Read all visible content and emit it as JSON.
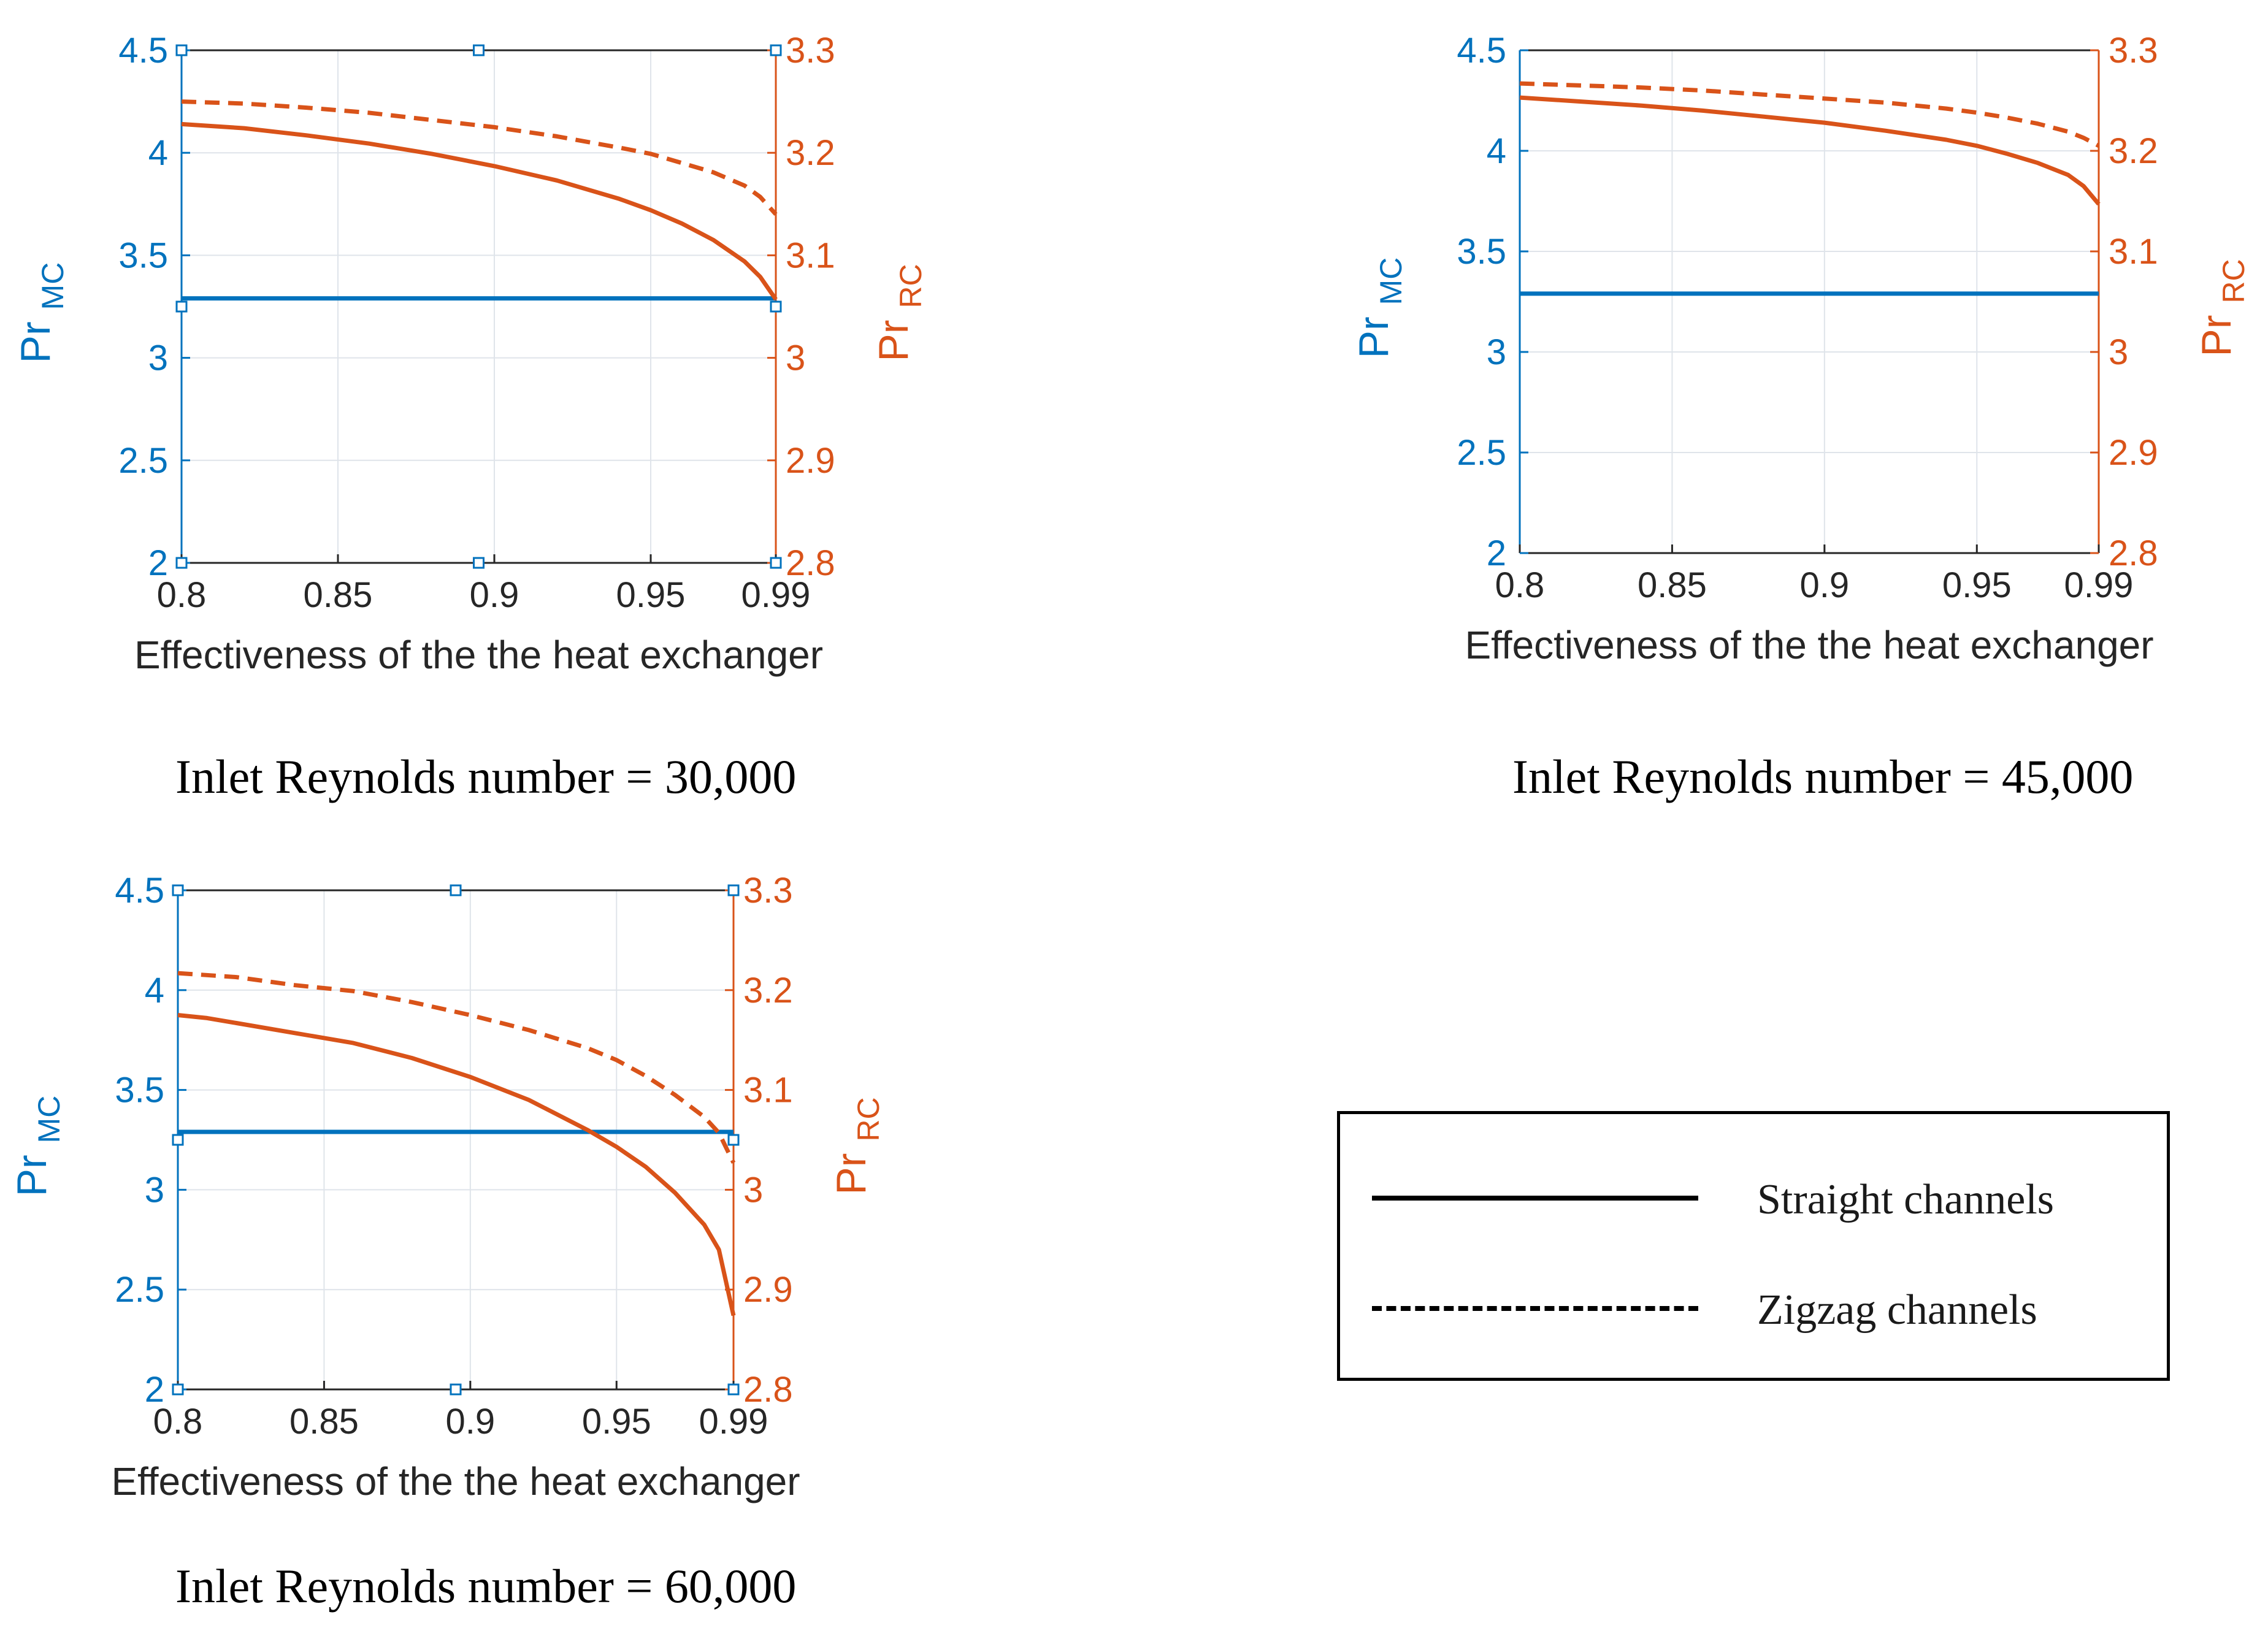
{
  "colors": {
    "left_axis": "#0072BD",
    "right_axis": "#D95319",
    "grid": "#dfe4ea",
    "tick_text": "#262626"
  },
  "legend": {
    "items": [
      {
        "label": "Straight channels",
        "style": "solid"
      },
      {
        "label": "Zigzag channels",
        "style": "dashed"
      }
    ]
  },
  "chart_data": [
    {
      "type": "line",
      "caption": "Inlet Reynolds number = 30,000",
      "xlabel": "Effectiveness of the the heat exchanger",
      "ylabel_left": {
        "main": "Pr",
        "sub": "MC"
      },
      "ylabel_right": {
        "main": "Pr",
        "sub": "RC"
      },
      "xlim": [
        0.8,
        0.99
      ],
      "ylim_left": [
        2,
        4.5
      ],
      "ylim_right": [
        2.8,
        3.3
      ],
      "xticks": [
        "0.8",
        "0.85",
        "0.9",
        "0.95",
        "0.99"
      ],
      "yticks_left": [
        "2",
        "2.5",
        "3",
        "3.5",
        "4",
        "4.5"
      ],
      "yticks_right": [
        "2.8",
        "2.9",
        "3",
        "3.1",
        "3.2",
        "3.3"
      ],
      "selection_markers": true,
      "series": [
        {
          "name": "Pr_MC",
          "axis": "left",
          "style": "solid",
          "x": [
            0.8,
            0.99
          ],
          "y": [
            3.29,
            3.29
          ]
        },
        {
          "name": "Pr_RC straight",
          "axis": "right",
          "style": "solid",
          "x": [
            0.8,
            0.82,
            0.84,
            0.86,
            0.88,
            0.9,
            0.92,
            0.94,
            0.95,
            0.96,
            0.97,
            0.98,
            0.985,
            0.99
          ],
          "y": [
            3.228,
            3.224,
            3.217,
            3.209,
            3.199,
            3.187,
            3.173,
            3.155,
            3.144,
            3.131,
            3.115,
            3.094,
            3.079,
            3.057
          ]
        },
        {
          "name": "Pr_RC zigzag",
          "axis": "right",
          "style": "dashed",
          "x": [
            0.8,
            0.82,
            0.84,
            0.86,
            0.88,
            0.9,
            0.92,
            0.94,
            0.95,
            0.96,
            0.97,
            0.98,
            0.985,
            0.99
          ],
          "y": [
            3.25,
            3.248,
            3.244,
            3.239,
            3.232,
            3.225,
            3.216,
            3.205,
            3.199,
            3.19,
            3.181,
            3.168,
            3.157,
            3.14
          ]
        }
      ]
    },
    {
      "type": "line",
      "caption": "Inlet Reynolds number = 45,000",
      "xlabel": "Effectiveness of the the heat exchanger",
      "ylabel_left": {
        "main": "Pr",
        "sub": "MC"
      },
      "ylabel_right": {
        "main": "Pr",
        "sub": "RC"
      },
      "xlim": [
        0.8,
        0.99
      ],
      "ylim_left": [
        2,
        4.5
      ],
      "ylim_right": [
        2.8,
        3.3
      ],
      "xticks": [
        "0.8",
        "0.85",
        "0.9",
        "0.95",
        "0.99"
      ],
      "yticks_left": [
        "2",
        "2.5",
        "3",
        "3.5",
        "4",
        "4.5"
      ],
      "yticks_right": [
        "2.8",
        "2.9",
        "3",
        "3.1",
        "3.2",
        "3.3"
      ],
      "selection_markers": false,
      "series": [
        {
          "name": "Pr_MC",
          "axis": "left",
          "style": "solid",
          "x": [
            0.8,
            0.99
          ],
          "y": [
            3.29,
            3.29
          ]
        },
        {
          "name": "Pr_RC straight",
          "axis": "right",
          "style": "solid",
          "x": [
            0.8,
            0.82,
            0.84,
            0.86,
            0.88,
            0.9,
            0.92,
            0.94,
            0.95,
            0.96,
            0.97,
            0.98,
            0.985,
            0.99
          ],
          "y": [
            3.253,
            3.249,
            3.245,
            3.24,
            3.234,
            3.228,
            3.22,
            3.211,
            3.205,
            3.197,
            3.188,
            3.176,
            3.165,
            3.147
          ]
        },
        {
          "name": "Pr_RC zigzag",
          "axis": "right",
          "style": "dashed",
          "x": [
            0.8,
            0.82,
            0.84,
            0.86,
            0.88,
            0.9,
            0.92,
            0.94,
            0.95,
            0.96,
            0.97,
            0.98,
            0.985,
            0.99
          ],
          "y": [
            3.267,
            3.265,
            3.263,
            3.26,
            3.256,
            3.252,
            3.248,
            3.242,
            3.238,
            3.233,
            3.227,
            3.219,
            3.213,
            3.205
          ]
        }
      ]
    },
    {
      "type": "line",
      "caption": "Inlet Reynolds number = 60,000",
      "xlabel": "Effectiveness of the the heat exchanger",
      "ylabel_left": {
        "main": "Pr",
        "sub": "MC"
      },
      "ylabel_right": {
        "main": "Pr",
        "sub": "RC"
      },
      "xlim": [
        0.8,
        0.99
      ],
      "ylim_left": [
        2,
        4.5
      ],
      "ylim_right": [
        2.8,
        3.3
      ],
      "xticks": [
        "0.8",
        "0.85",
        "0.9",
        "0.95",
        "0.99"
      ],
      "yticks_left": [
        "2",
        "2.5",
        "3",
        "3.5",
        "4",
        "4.5"
      ],
      "yticks_right": [
        "2.8",
        "2.9",
        "3",
        "3.1",
        "3.2",
        "3.3"
      ],
      "selection_markers": true,
      "series": [
        {
          "name": "Pr_MC",
          "axis": "left",
          "style": "solid",
          "x": [
            0.8,
            0.99
          ],
          "y": [
            3.29,
            3.29
          ]
        },
        {
          "name": "Pr_RC straight",
          "axis": "right",
          "style": "solid",
          "x": [
            0.8,
            0.81,
            0.82,
            0.84,
            0.86,
            0.88,
            0.9,
            0.92,
            0.94,
            0.95,
            0.96,
            0.97,
            0.98,
            0.985,
            0.99
          ],
          "y": [
            3.175,
            3.172,
            3.167,
            3.157,
            3.147,
            3.132,
            3.113,
            3.09,
            3.06,
            3.043,
            3.023,
            2.997,
            2.965,
            2.94,
            2.874
          ]
        },
        {
          "name": "Pr_RC zigzag",
          "axis": "right",
          "style": "dashed",
          "x": [
            0.8,
            0.82,
            0.84,
            0.86,
            0.88,
            0.9,
            0.92,
            0.94,
            0.95,
            0.96,
            0.97,
            0.98,
            0.985,
            0.99
          ],
          "y": [
            3.217,
            3.213,
            3.205,
            3.199,
            3.188,
            3.175,
            3.16,
            3.142,
            3.13,
            3.114,
            3.095,
            3.073,
            3.057,
            3.027
          ]
        }
      ]
    }
  ]
}
